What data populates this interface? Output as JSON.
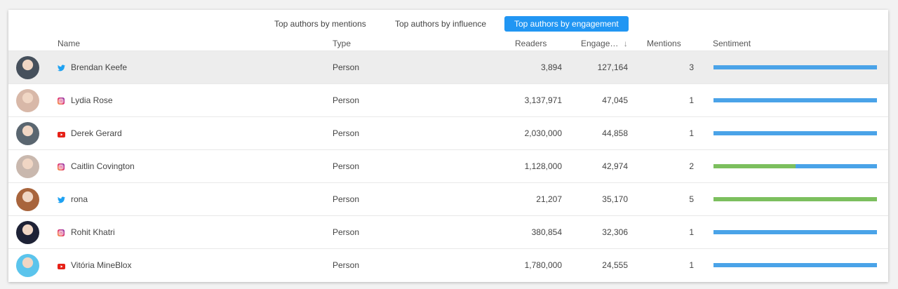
{
  "tabs": [
    {
      "label": "Top authors by mentions",
      "active": false
    },
    {
      "label": "Top authors by influence",
      "active": false
    },
    {
      "label": "Top authors by engagement",
      "active": true
    }
  ],
  "columns": {
    "name": "Name",
    "type": "Type",
    "readers": "Readers",
    "engagement": "Engage…",
    "sort_icon": "arrow-down-icon",
    "mentions": "Mentions",
    "sentiment": "Sentiment"
  },
  "colors": {
    "accent": "#2196f3",
    "positive": "#7cbf5e",
    "neutral": "#4aa3e8",
    "twitter": "#1da1f2",
    "youtube": "#e62117"
  },
  "rows": [
    {
      "name": "Brendan Keefe",
      "platform": "twitter",
      "type": "Person",
      "readers": "3,894",
      "engagement": "127,164",
      "mentions": "3",
      "positive": 0,
      "avatar": "#46505c",
      "selected": true
    },
    {
      "name": "Lydia Rose",
      "platform": "instagram",
      "type": "Person",
      "readers": "3,137,971",
      "engagement": "47,045",
      "mentions": "1",
      "positive": 0,
      "avatar": "#d8b8a8"
    },
    {
      "name": "Derek Gerard",
      "platform": "youtube",
      "type": "Person",
      "readers": "2,030,000",
      "engagement": "44,858",
      "mentions": "1",
      "positive": 0,
      "avatar": "#5a6670"
    },
    {
      "name": "Caitlin Covington",
      "platform": "instagram",
      "type": "Person",
      "readers": "1,128,000",
      "engagement": "42,974",
      "mentions": "2",
      "positive": 0.5,
      "avatar": "#c9b8ae"
    },
    {
      "name": "rona",
      "platform": "twitter",
      "type": "Person",
      "readers": "21,207",
      "engagement": "35,170",
      "mentions": "5",
      "positive": 1,
      "avatar": "#a8643c"
    },
    {
      "name": "Rohit Khatri",
      "platform": "instagram",
      "type": "Person",
      "readers": "380,854",
      "engagement": "32,306",
      "mentions": "1",
      "positive": 0,
      "avatar": "#1e2236"
    },
    {
      "name": "Vitória MineBlox",
      "platform": "youtube",
      "type": "Person",
      "readers": "1,780,000",
      "engagement": "24,555",
      "mentions": "1",
      "positive": 0,
      "avatar": "#5bc4ec"
    }
  ]
}
